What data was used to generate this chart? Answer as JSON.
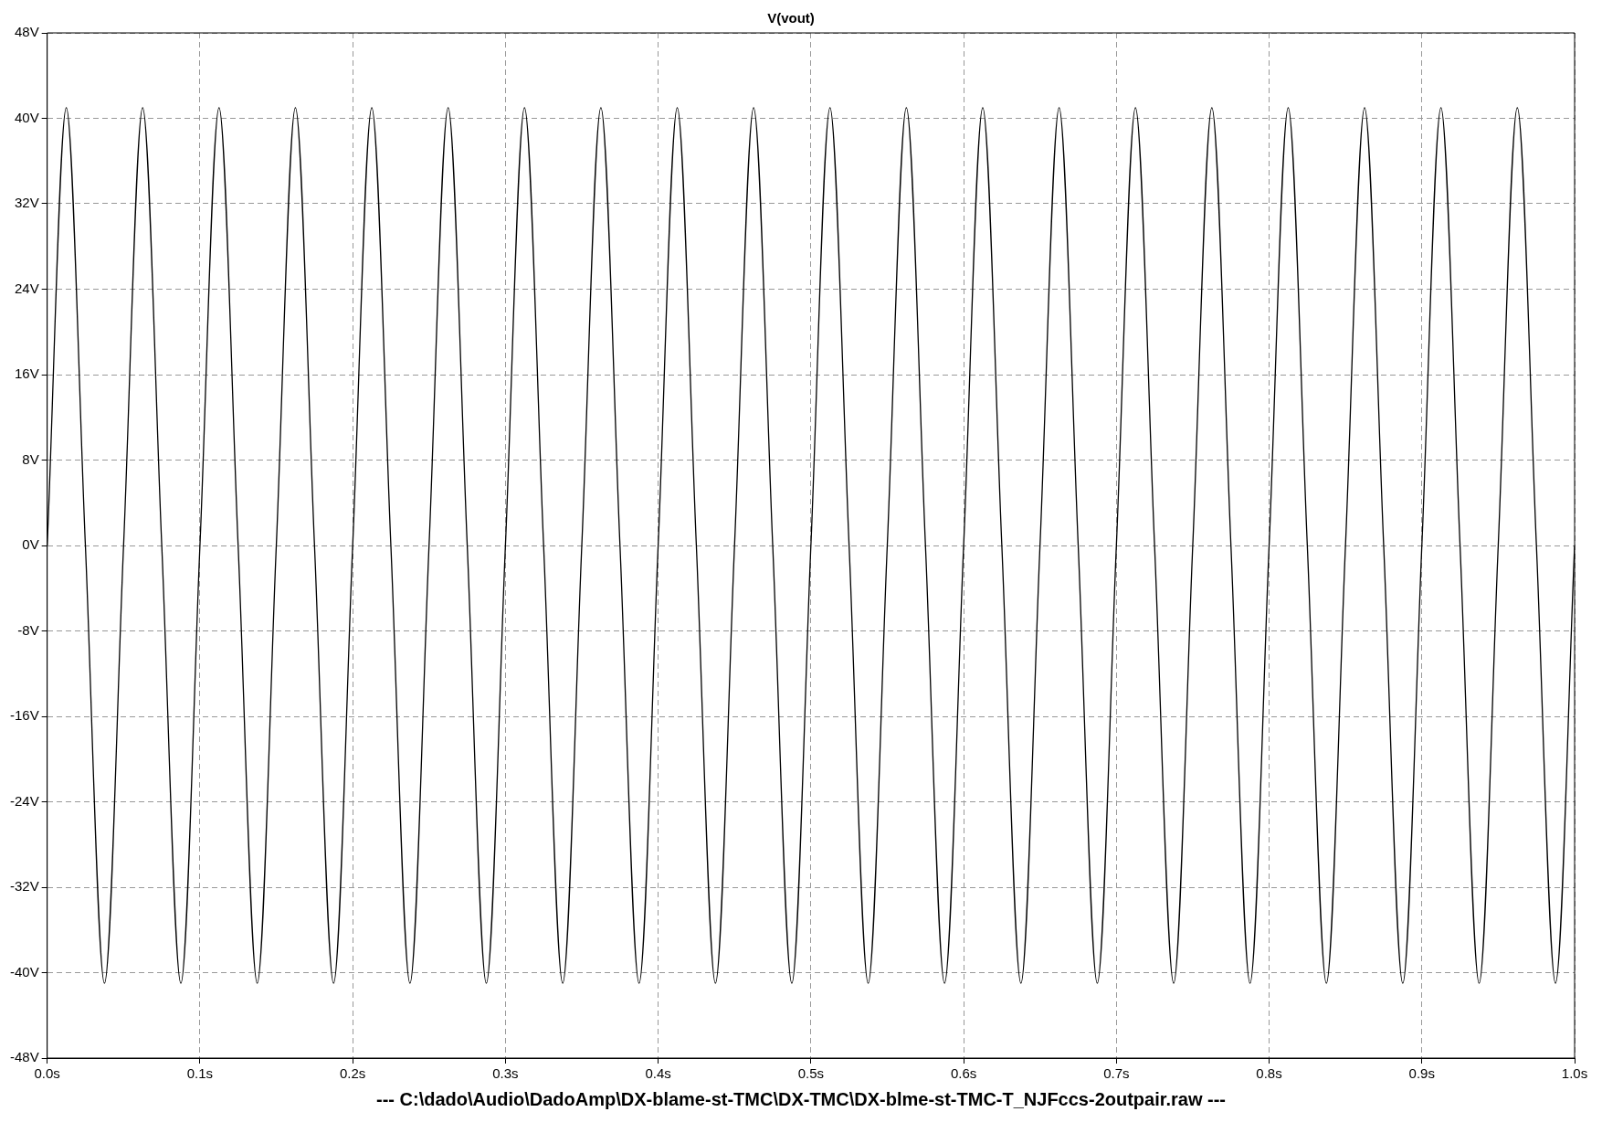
{
  "chart_data": {
    "type": "line",
    "title": "V(vout)",
    "x": [
      0,
      0.0125,
      0.025,
      0.0375,
      0.05,
      0.0625,
      0.075,
      0.0875,
      0.1,
      0.1125,
      0.125,
      0.1375,
      0.15,
      0.1625,
      0.175,
      0.1875,
      0.2,
      0.2125,
      0.225,
      0.2375,
      0.25,
      0.2625,
      0.275,
      0.2875,
      0.3,
      0.3125,
      0.325,
      0.3375,
      0.35,
      0.3625,
      0.375,
      0.3875,
      0.4,
      0.4125,
      0.425,
      0.4375,
      0.45,
      0.4625,
      0.475,
      0.4875,
      0.5,
      0.5125,
      0.525,
      0.5375,
      0.55,
      0.5625,
      0.575,
      0.5875,
      0.6,
      0.6125,
      0.625,
      0.6375,
      0.65,
      0.6625,
      0.675,
      0.6875,
      0.7,
      0.7125,
      0.725,
      0.7375,
      0.75,
      0.7625,
      0.775,
      0.7875,
      0.8,
      0.8125,
      0.825,
      0.8375,
      0.85,
      0.8625,
      0.875,
      0.8875,
      0.9,
      0.9125,
      0.925,
      0.9375,
      0.95,
      0.9625,
      0.975,
      0.9875,
      1.0
    ],
    "series": [
      {
        "color": "#000000",
        "values": [
          0,
          41,
          0,
          -41,
          0,
          41,
          0,
          -41,
          0,
          41,
          0,
          -41,
          0,
          41,
          0,
          -41,
          0,
          41,
          0,
          -41,
          0,
          41,
          0,
          -41,
          0,
          41,
          0,
          -41,
          0,
          41,
          0,
          -41,
          0,
          41,
          0,
          -41,
          0,
          41,
          0,
          -41,
          0,
          41,
          0,
          -41,
          0,
          41,
          0,
          -41,
          0,
          41,
          0,
          -41,
          0,
          41,
          0,
          -41,
          0,
          41,
          0,
          -41,
          0,
          41,
          0,
          -41,
          0,
          41,
          0,
          -41,
          0,
          41,
          0,
          -41,
          0,
          41,
          0,
          -41,
          0,
          41,
          0,
          -41,
          0
        ]
      }
    ],
    "xlim": [
      0,
      1.0
    ],
    "xticks": [
      {
        "value": 0,
        "label": "0.0s"
      },
      {
        "value": 0.1,
        "label": "0.1s"
      },
      {
        "value": 0.2,
        "label": "0.2s"
      },
      {
        "value": 0.3,
        "label": "0.3s"
      },
      {
        "value": 0.4,
        "label": "0.4s"
      },
      {
        "value": 0.5,
        "label": "0.5s"
      },
      {
        "value": 0.6,
        "label": "0.6s"
      },
      {
        "value": 0.7,
        "label": "0.7s"
      },
      {
        "value": 0.8,
        "label": "0.8s"
      },
      {
        "value": 0.9,
        "label": "0.9s"
      },
      {
        "value": 1.0,
        "label": "1.0s"
      }
    ],
    "ylim": [
      -48,
      48
    ],
    "yticks": [
      {
        "value": -48,
        "label": "-48V"
      },
      {
        "value": -40,
        "label": "-40V"
      },
      {
        "value": -32,
        "label": "-32V"
      },
      {
        "value": -24,
        "label": "-24V"
      },
      {
        "value": -16,
        "label": "-16V"
      },
      {
        "value": -8,
        "label": "-8V"
      },
      {
        "value": 0,
        "label": "0V"
      },
      {
        "value": 8,
        "label": "8V"
      },
      {
        "value": 16,
        "label": "16V"
      },
      {
        "value": 24,
        "label": "24V"
      },
      {
        "value": 32,
        "label": "32V"
      },
      {
        "value": 40,
        "label": "40V"
      },
      {
        "value": 48,
        "label": "48V"
      }
    ],
    "grid": true,
    "legend": false,
    "marker": "none",
    "line_style": "solid",
    "annotations": [
      "---  C:\\dado\\Audio\\DadoAmp\\DX-blame-st-TMC\\DX-TMC\\DX-blme-st-TMC-T_NJFccs-2outpair.raw  ---"
    ]
  }
}
